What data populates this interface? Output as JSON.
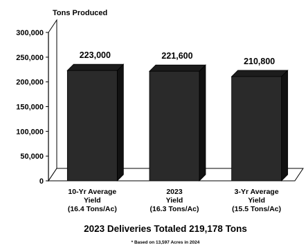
{
  "chart_data": {
    "type": "bar",
    "ylabel": "Tons Produced",
    "categories": [
      [
        "10-Yr Average",
        "Yield",
        "(16.4 Tons/Ac)"
      ],
      [
        "2023",
        "Yield",
        "(16.3 Tons/Ac)"
      ],
      [
        "3-Yr Average",
        "Yield",
        "(15.5 Tons/Ac)"
      ]
    ],
    "values": [
      223000,
      221600,
      210800
    ],
    "data_labels": [
      "223,000",
      "221,600",
      "210,800"
    ],
    "ylim": [
      0,
      300000
    ],
    "yticks": [
      0,
      50000,
      100000,
      150000,
      200000,
      250000,
      300000
    ],
    "ytick_labels": [
      "0",
      "50,000",
      "100,000",
      "150,000",
      "200,000",
      "250,000",
      "300,000"
    ],
    "title": "2023 Deliveries Totaled 219,178 Tons",
    "footnote": "* Based on 13,597 Acres in 2024",
    "bar_color": "#2a2a2a",
    "grid": false
  }
}
